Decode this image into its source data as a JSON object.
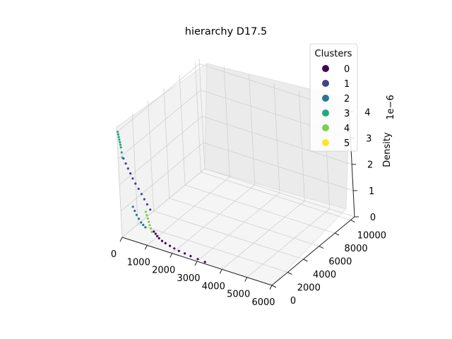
{
  "chart_data": {
    "type": "scatter",
    "projection": "3d",
    "title": "hierarchy D17.5",
    "xlabel": "",
    "ylabel": "",
    "zlabel": "Density",
    "z_offset_label": "1e−6",
    "x_ticks": [
      "0",
      "1000",
      "2000",
      "3000",
      "4000",
      "5000",
      "6000"
    ],
    "y_ticks": [
      "0",
      "2000",
      "4000",
      "6000",
      "8000",
      "10000"
    ],
    "z_ticks": [
      "0",
      "1",
      "2",
      "3",
      "4"
    ],
    "xlim": [
      0,
      6000
    ],
    "ylim": [
      0,
      10500
    ],
    "zlim": [
      0,
      4.2
    ],
    "grid": true,
    "legend": {
      "title": "Clusters",
      "placement": "top-right",
      "entries": [
        {
          "label": "0",
          "color": "#440154"
        },
        {
          "label": "1",
          "color": "#414487"
        },
        {
          "label": "2",
          "color": "#2a788e"
        },
        {
          "label": "3",
          "color": "#22a884"
        },
        {
          "label": "4",
          "color": "#7ad151"
        },
        {
          "label": "5",
          "color": "#fde725"
        }
      ]
    },
    "series": [
      {
        "name": "0",
        "color": "#440154",
        "x": [
          1000,
          1100,
          1200,
          1300,
          1450,
          1600,
          1800,
          2000,
          2200,
          2450,
          2700,
          3000,
          3300
        ],
        "y": [
          900,
          800,
          700,
          600,
          500,
          450,
          380,
          300,
          250,
          200,
          150,
          100,
          60
        ],
        "z": [
          0.3,
          0.27,
          0.24,
          0.21,
          0.18,
          0.15,
          0.13,
          0.11,
          0.09,
          0.08,
          0.07,
          0.06,
          0.05
        ]
      },
      {
        "name": "1",
        "color": "#414487",
        "x": [
          150,
          200,
          250,
          300,
          350,
          420,
          500,
          580,
          650,
          720,
          800
        ],
        "y": [
          200,
          300,
          400,
          500,
          600,
          700,
          800,
          900,
          1000,
          1100,
          1200
        ],
        "z": [
          3.0,
          2.8,
          2.6,
          2.4,
          2.2,
          2.0,
          1.8,
          1.6,
          1.4,
          1.2,
          1.0
        ]
      },
      {
        "name": "2",
        "color": "#2a788e",
        "x": [
          200,
          300,
          400,
          500,
          600,
          700,
          800
        ],
        "y": [
          900,
          800,
          700,
          650,
          600,
          550,
          500
        ],
        "z": [
          1.0,
          0.9,
          0.8,
          0.7,
          0.6,
          0.55,
          0.5
        ]
      },
      {
        "name": "3",
        "color": "#22a884",
        "x": [
          10,
          20,
          30,
          40,
          50,
          60,
          70,
          80,
          90
        ],
        "y": [
          80,
          100,
          120,
          140,
          160,
          180,
          200,
          230,
          260
        ],
        "z": [
          4.0,
          3.9,
          3.8,
          3.7,
          3.6,
          3.5,
          3.4,
          3.2,
          3.0
        ]
      },
      {
        "name": "4",
        "color": "#7ad151",
        "x": [
          700,
          750,
          800,
          850,
          900,
          950,
          1000
        ],
        "y": [
          950,
          900,
          850,
          800,
          750,
          700,
          650
        ],
        "z": [
          0.95,
          0.85,
          0.75,
          0.65,
          0.55,
          0.45,
          0.35
        ]
      },
      {
        "name": "5",
        "color": "#fde725",
        "x": [],
        "y": [],
        "z": []
      }
    ]
  }
}
